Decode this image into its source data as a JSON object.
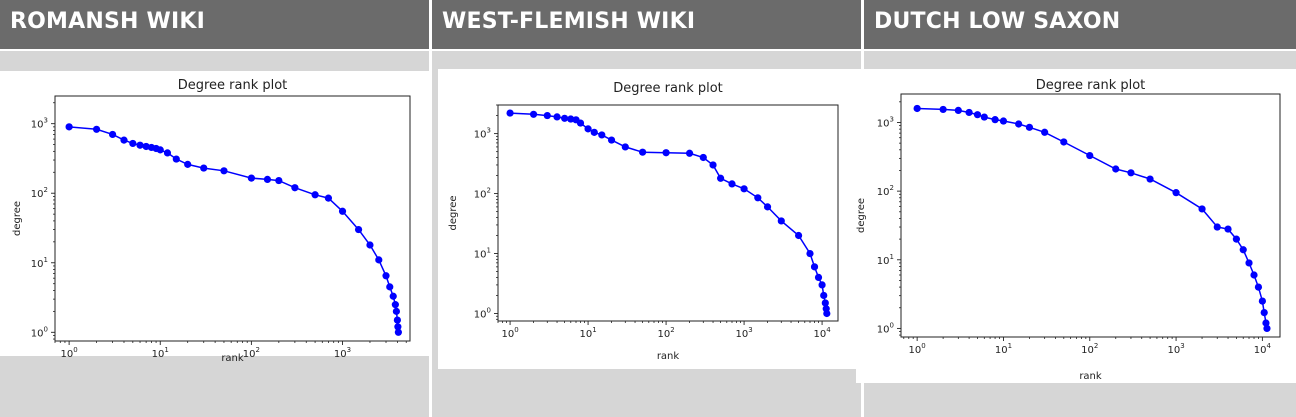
{
  "headers": [
    "ROMANSH WIKI",
    "WEST-FLEMISH WIKI",
    "DUTCH LOW SAXON"
  ],
  "colors": {
    "header_bg": "#6b6b6b",
    "column_bg": "#d6d6d6",
    "series": "#0000ff"
  },
  "chart_data": [
    {
      "type": "line",
      "title": "Degree rank plot",
      "xlabel": "rank",
      "ylabel": "degree",
      "xscale": "log",
      "yscale": "log",
      "xlim": [
        0.7,
        5500
      ],
      "ylim": [
        0.75,
        2500
      ],
      "xticks": [
        1,
        10,
        100,
        1000
      ],
      "xtick_labels": [
        [
          "10",
          "0"
        ],
        [
          "10",
          "1"
        ],
        [
          "10",
          "2"
        ],
        [
          "10",
          "3"
        ]
      ],
      "yticks": [
        1,
        10,
        100,
        1000
      ],
      "ytick_labels": [
        [
          "10",
          "0"
        ],
        [
          "10",
          "1"
        ],
        [
          "10",
          "2"
        ],
        [
          "10",
          "3"
        ]
      ],
      "marker": "o",
      "series": [
        {
          "x": [
            1,
            2,
            3,
            4,
            5,
            6,
            7,
            8,
            9,
            10,
            12,
            15,
            20,
            30,
            50,
            100,
            150,
            200,
            300,
            500,
            700,
            1000,
            1500,
            2000,
            2500,
            3000,
            3300,
            3600,
            3800,
            3900,
            4000,
            4050,
            4100
          ],
          "y": [
            900,
            830,
            700,
            580,
            520,
            490,
            470,
            455,
            440,
            420,
            380,
            310,
            260,
            230,
            210,
            165,
            158,
            152,
            120,
            95,
            85,
            55,
            30,
            18,
            11,
            6.5,
            4.5,
            3.3,
            2.5,
            2,
            1.5,
            1.2,
            1
          ]
        }
      ]
    },
    {
      "type": "line",
      "title": "Degree rank plot",
      "xlabel": "rank",
      "ylabel": "degree",
      "xscale": "log",
      "yscale": "log",
      "xlim": [
        0.7,
        16000
      ],
      "ylim": [
        0.75,
        3000
      ],
      "xticks": [
        1,
        10,
        100,
        1000,
        10000
      ],
      "xtick_labels": [
        [
          "10",
          "0"
        ],
        [
          "10",
          "1"
        ],
        [
          "10",
          "2"
        ],
        [
          "10",
          "3"
        ],
        [
          "10",
          "4"
        ]
      ],
      "yticks": [
        1,
        10,
        100,
        1000
      ],
      "ytick_labels": [
        [
          "10",
          "0"
        ],
        [
          "10",
          "1"
        ],
        [
          "10",
          "2"
        ],
        [
          "10",
          "3"
        ]
      ],
      "marker": "o",
      "series": [
        {
          "x": [
            1,
            2,
            3,
            4,
            5,
            6,
            7,
            8,
            10,
            12,
            15,
            20,
            30,
            50,
            100,
            200,
            300,
            400,
            500,
            700,
            1000,
            1500,
            2000,
            3000,
            5000,
            7000,
            8000,
            9000,
            10000,
            10500,
            11000,
            11300,
            11500
          ],
          "y": [
            2200,
            2100,
            2000,
            1900,
            1800,
            1750,
            1700,
            1500,
            1200,
            1050,
            950,
            780,
            600,
            490,
            480,
            470,
            400,
            300,
            180,
            145,
            120,
            85,
            60,
            35,
            20,
            10,
            6,
            4,
            3,
            2,
            1.5,
            1.2,
            1
          ]
        }
      ]
    },
    {
      "type": "line",
      "title": "Degree rank plot",
      "xlabel": "rank",
      "ylabel": "degree",
      "xscale": "log",
      "yscale": "log",
      "xlim": [
        0.65,
        16000
      ],
      "ylim": [
        0.75,
        2600
      ],
      "xticks": [
        1,
        10,
        100,
        1000,
        10000
      ],
      "xtick_labels": [
        [
          "10",
          "0"
        ],
        [
          "10",
          "1"
        ],
        [
          "10",
          "2"
        ],
        [
          "10",
          "3"
        ],
        [
          "10",
          "4"
        ]
      ],
      "yticks": [
        1,
        10,
        100,
        1000
      ],
      "ytick_labels": [
        [
          "10",
          "0"
        ],
        [
          "10",
          "1"
        ],
        [
          "10",
          "2"
        ],
        [
          "10",
          "3"
        ]
      ],
      "marker": "o",
      "series": [
        {
          "x": [
            1,
            2,
            3,
            4,
            5,
            6,
            8,
            10,
            15,
            20,
            30,
            50,
            100,
            200,
            300,
            500,
            1000,
            2000,
            3000,
            4000,
            5000,
            6000,
            7000,
            8000,
            9000,
            10000,
            10500,
            11000,
            11300
          ],
          "y": [
            1600,
            1550,
            1500,
            1400,
            1300,
            1200,
            1100,
            1050,
            950,
            850,
            720,
            520,
            330,
            210,
            185,
            150,
            95,
            55,
            30,
            28,
            20,
            14,
            9,
            6,
            4,
            2.5,
            1.7,
            1.2,
            1
          ]
        }
      ]
    }
  ]
}
